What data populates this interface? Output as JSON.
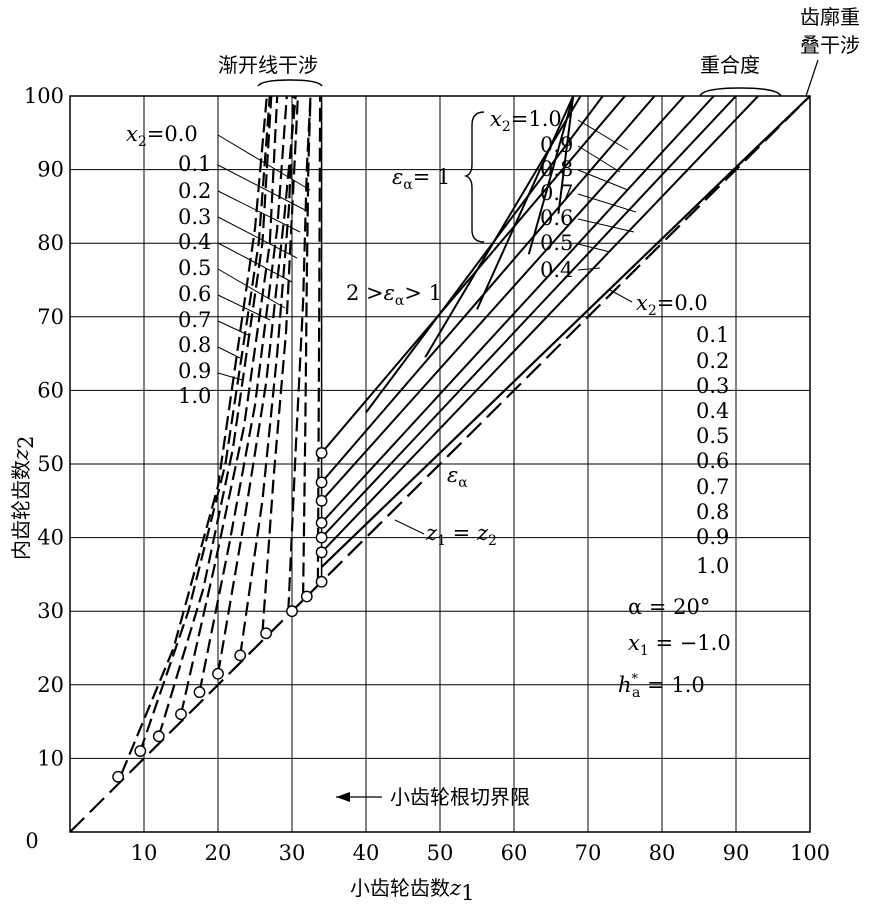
{
  "chart_data": {
    "type": "line",
    "xlabel": "小齿轮齿数",
    "xlabel_var": "z",
    "xlabel_sub": "1",
    "ylabel": "内齿轮齿数",
    "ylabel_var": "z",
    "ylabel_sub": "2",
    "xlim": [
      0,
      100
    ],
    "ylim": [
      0,
      100
    ],
    "grid": true,
    "x_ticks": [
      "0",
      "10",
      "20",
      "30",
      "40",
      "50",
      "60",
      "70",
      "80",
      "90",
      "100"
    ],
    "y_ticks": [
      "10",
      "20",
      "30",
      "40",
      "50",
      "60",
      "70",
      "80",
      "90",
      "100"
    ],
    "x2_values": [
      "0.0",
      "0.1",
      "0.2",
      "0.3",
      "0.4",
      "0.5",
      "0.6",
      "0.7",
      "0.8",
      "0.9",
      "1.0"
    ],
    "involute_series": [
      {
        "x2": "0.0",
        "points": [
          [
            7,
            8
          ],
          [
            14,
            25
          ],
          [
            20,
            47
          ],
          [
            25,
            82
          ],
          [
            26.6,
            100
          ]
        ]
      },
      {
        "x2": "0.1",
        "points": [
          [
            9.5,
            11
          ],
          [
            16,
            30
          ],
          [
            21,
            50
          ],
          [
            25.5,
            80
          ],
          [
            27,
            100
          ]
        ]
      },
      {
        "x2": "0.2",
        "points": [
          [
            12,
            13
          ],
          [
            18,
            33
          ],
          [
            22,
            52
          ],
          [
            26,
            80
          ],
          [
            27.2,
            100
          ]
        ]
      },
      {
        "x2": "0.3",
        "points": [
          [
            15,
            16
          ],
          [
            19.5,
            36
          ],
          [
            23.5,
            55
          ],
          [
            27,
            80
          ],
          [
            28,
            100
          ]
        ]
      },
      {
        "x2": "0.4",
        "points": [
          [
            17.5,
            19
          ],
          [
            21.5,
            39
          ],
          [
            25,
            58
          ],
          [
            28,
            82
          ],
          [
            29.3,
            100
          ]
        ]
      },
      {
        "x2": "0.5",
        "points": [
          [
            20,
            21.5
          ],
          [
            23.5,
            42
          ],
          [
            26.5,
            61
          ],
          [
            29,
            84
          ],
          [
            30.5,
            100
          ]
        ]
      },
      {
        "x2": "0.6",
        "points": [
          [
            23,
            24
          ],
          [
            26,
            45
          ],
          [
            28,
            65
          ],
          [
            29.6,
            85
          ],
          [
            30.2,
            100
          ]
        ]
      },
      {
        "x2": "0.7",
        "points": [
          [
            26,
            27
          ],
          [
            27.5,
            48
          ],
          [
            29.2,
            68
          ],
          [
            30.2,
            88
          ],
          [
            30.8,
            100
          ]
        ]
      },
      {
        "x2": "0.8",
        "points": [
          [
            29.5,
            30
          ],
          [
            30.5,
            52
          ],
          [
            31.5,
            72
          ],
          [
            32,
            90
          ],
          [
            32.5,
            100
          ]
        ]
      },
      {
        "x2": "0.9",
        "points": [
          [
            31.5,
            32
          ],
          [
            31.8,
            55
          ],
          [
            32,
            75
          ],
          [
            32.2,
            90
          ],
          [
            32.5,
            100
          ]
        ]
      },
      {
        "x2": "1.0",
        "points": [
          [
            33.5,
            34
          ],
          [
            33.6,
            55
          ],
          [
            33.7,
            75
          ],
          [
            33.8,
            100
          ]
        ]
      }
    ],
    "involute_circles": [
      [
        6.5,
        7.5
      ],
      [
        9.5,
        11
      ],
      [
        12,
        13
      ],
      [
        15,
        16
      ],
      [
        17.5,
        19
      ],
      [
        20,
        21.5
      ],
      [
        23,
        24
      ],
      [
        26.5,
        27
      ],
      [
        30,
        30
      ],
      [
        32,
        32
      ],
      [
        34,
        34
      ]
    ],
    "root_circles": [
      [
        34,
        38
      ],
      [
        34,
        40
      ],
      [
        34,
        42
      ],
      [
        34,
        45
      ],
      [
        34,
        47.5
      ],
      [
        34,
        51.5
      ]
    ],
    "contact_series": [
      {
        "x2": "0.0",
        "points": [
          [
            34,
            38
          ],
          [
            93,
            100
          ]
        ]
      },
      {
        "x2": "0.1",
        "points": [
          [
            34,
            40
          ],
          [
            90,
            100
          ]
        ]
      },
      {
        "x2": "0.2",
        "points": [
          [
            34,
            42
          ],
          [
            87,
            100
          ]
        ]
      },
      {
        "x2": "0.3",
        "points": [
          [
            34,
            45
          ],
          [
            83,
            100
          ]
        ]
      },
      {
        "x2": "0.4",
        "points": [
          [
            34,
            47.5
          ],
          [
            79,
            100
          ]
        ]
      },
      {
        "x2": "0.5",
        "points": [
          [
            34,
            51.5
          ],
          [
            75,
            100
          ]
        ]
      },
      {
        "x2": "0.6",
        "points": [
          [
            40,
            57
          ],
          [
            72,
            100
          ]
        ]
      },
      {
        "x2": "0.7",
        "points": [
          [
            48,
            64.5
          ],
          [
            69,
            100
          ]
        ]
      },
      {
        "x2": "0.8",
        "points": [
          [
            55,
            71
          ],
          [
            68,
            100
          ]
        ]
      },
      {
        "x2": "0.9",
        "points": [
          [
            62,
            78.5
          ],
          [
            68,
            100
          ]
        ]
      },
      {
        "x2": "1.0",
        "points": [
          [
            66,
            84
          ],
          [
            68,
            100
          ]
        ]
      }
    ],
    "overlap_line": {
      "points": [
        [
          34,
          36
        ],
        [
          100,
          100
        ]
      ]
    },
    "boundary_x": 34,
    "annotations": {
      "involute": "渐开线干涉",
      "contact_ratio": "重合度",
      "profile_overlap_1": "齿廓重",
      "profile_overlap_2": "叠干涉",
      "root_cut_limit": "小齿轮根切界限",
      "eps_eq1_prefix": "ε",
      "eps_eq1_sub": "α",
      "eps_eq1_suffix": "= 1",
      "eps_range_left": "2 >",
      "eps_range_sym": "ε",
      "eps_range_sub": "α",
      "eps_range_right": "> 1",
      "eps_alpha": "ε",
      "eps_alpha_sub": "α",
      "z_eq_left": "z",
      "z_eq_left_sub": "1",
      "z_eq_eq": " = ",
      "z_eq_right": "z",
      "z_eq_right_sub": "2",
      "x2_label": "x",
      "x2_sub": "2",
      "x2_eq": "=",
      "alpha_param": "α = 20°",
      "x1_param_var": "x",
      "x1_param_sub": "1",
      "x1_param_val": " = −1.0",
      "ha_param_var": "h",
      "ha_param_sup": "*",
      "ha_param_sub": "a",
      "ha_param_val": " = 1.0",
      "right_top_labels": [
        "1.0",
        "0.9",
        "0.8",
        "0.7",
        "0.6",
        "0.5",
        "0.4"
      ]
    }
  }
}
